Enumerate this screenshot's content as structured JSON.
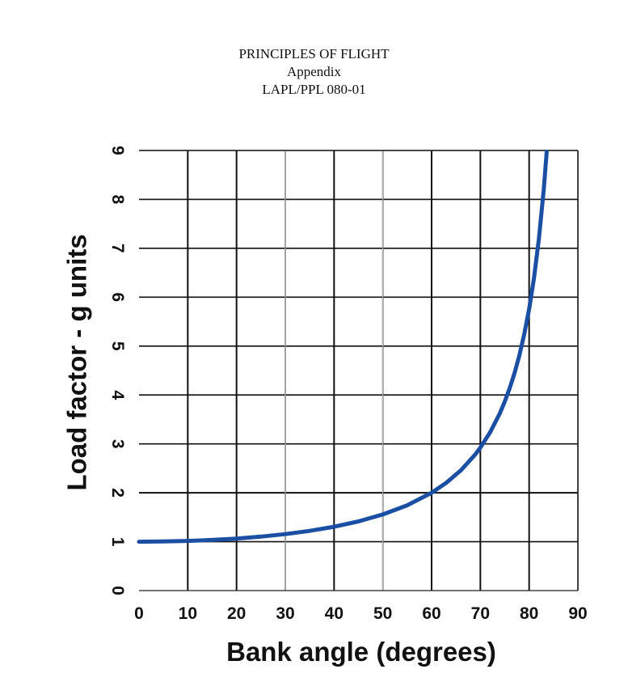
{
  "header": {
    "line1": "PRINCIPLES OF FLIGHT",
    "line2": "Appendix",
    "line3": "LAPL/PPL 080-01"
  },
  "chart_data": {
    "type": "line",
    "title": "",
    "xlabel": "Bank angle (degrees)",
    "ylabel": "Load factor - g units",
    "xlim": [
      0,
      90
    ],
    "ylim": [
      0,
      9
    ],
    "x_ticks": [
      0,
      10,
      20,
      30,
      40,
      50,
      60,
      70,
      80,
      90
    ],
    "y_ticks": [
      0,
      1,
      2,
      3,
      4,
      5,
      6,
      7,
      8,
      9
    ],
    "grid": true,
    "legend": "none",
    "series": [
      {
        "color": "#1a4fa3",
        "x": [
          0,
          5,
          10,
          15,
          20,
          25,
          30,
          35,
          40,
          45,
          50,
          55,
          60,
          63,
          66,
          69,
          70,
          72,
          74,
          75,
          76,
          77,
          78,
          79,
          80,
          81,
          82,
          83,
          83.6
        ],
        "y": [
          1.0,
          1.004,
          1.015,
          1.035,
          1.064,
          1.103,
          1.155,
          1.221,
          1.305,
          1.414,
          1.556,
          1.743,
          2.0,
          2.203,
          2.459,
          2.79,
          2.924,
          3.236,
          3.628,
          3.864,
          4.134,
          4.445,
          4.81,
          5.241,
          5.759,
          6.392,
          7.185,
          8.206,
          8.97
        ]
      }
    ]
  }
}
